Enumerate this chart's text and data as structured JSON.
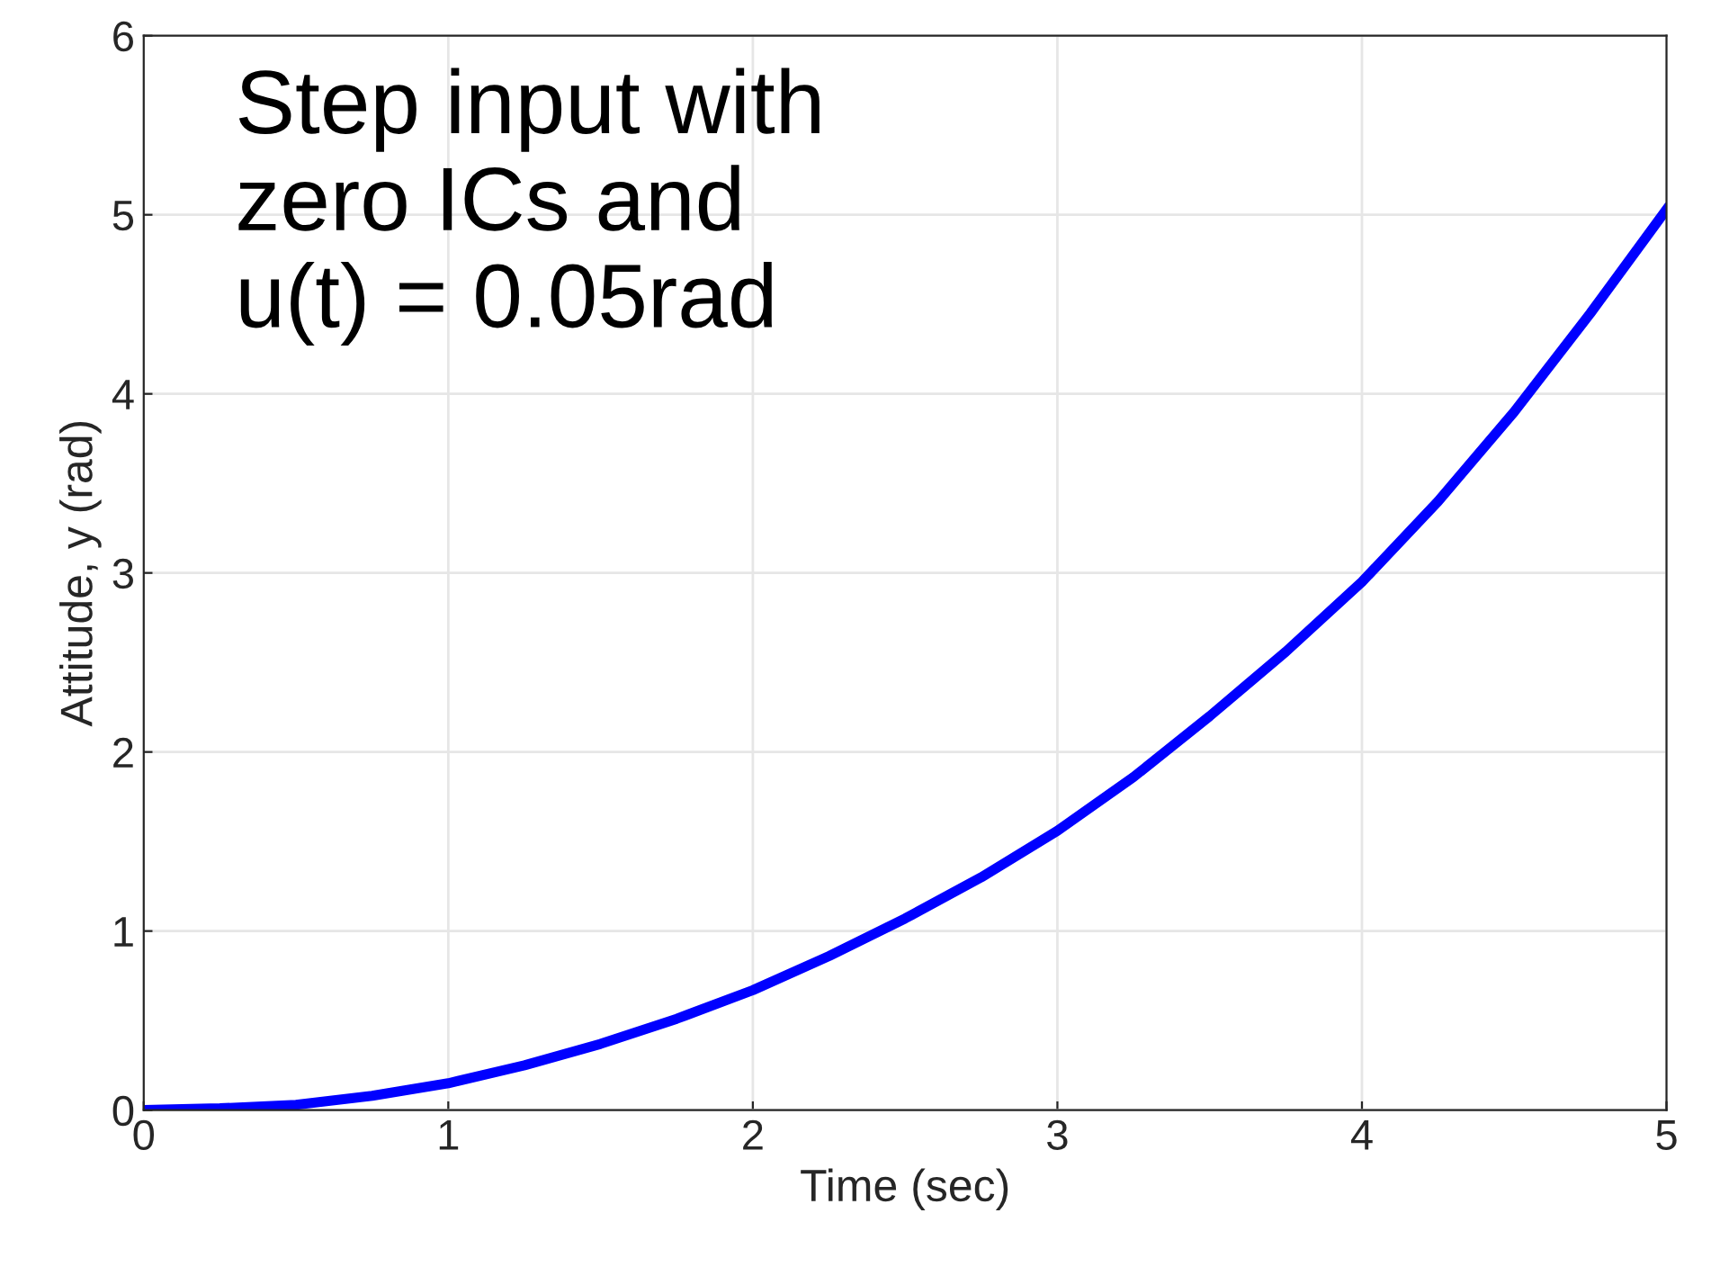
{
  "chart_data": {
    "type": "line",
    "xlabel": "Time (sec)",
    "ylabel": "Attitude, y (rad)",
    "annotations": [
      "Step input with\nzero ICs and\nu(t) = 0.05rad"
    ],
    "x": [
      0,
      0.25,
      0.5,
      0.75,
      1,
      1.25,
      1.5,
      1.75,
      2,
      2.25,
      2.5,
      2.75,
      3,
      3.25,
      3.5,
      3.75,
      4,
      4.25,
      4.5,
      4.75,
      5
    ],
    "series": [
      {
        "color": "#0000ff",
        "values": [
          0,
          0.01,
          0.03,
          0.08,
          0.15,
          0.25,
          0.37,
          0.51,
          0.67,
          0.86,
          1.07,
          1.3,
          1.56,
          1.86,
          2.2,
          2.56,
          2.95,
          3.4,
          3.9,
          4.45,
          5.03
        ]
      }
    ],
    "xlim": [
      0,
      5
    ],
    "ylim": [
      0,
      6
    ],
    "xticks": [
      0,
      1,
      2,
      3,
      4,
      5
    ],
    "yticks": [
      0,
      1,
      2,
      3,
      4,
      5,
      6
    ],
    "grid": true,
    "legend": false,
    "marker": "none",
    "line_style": "solid"
  }
}
